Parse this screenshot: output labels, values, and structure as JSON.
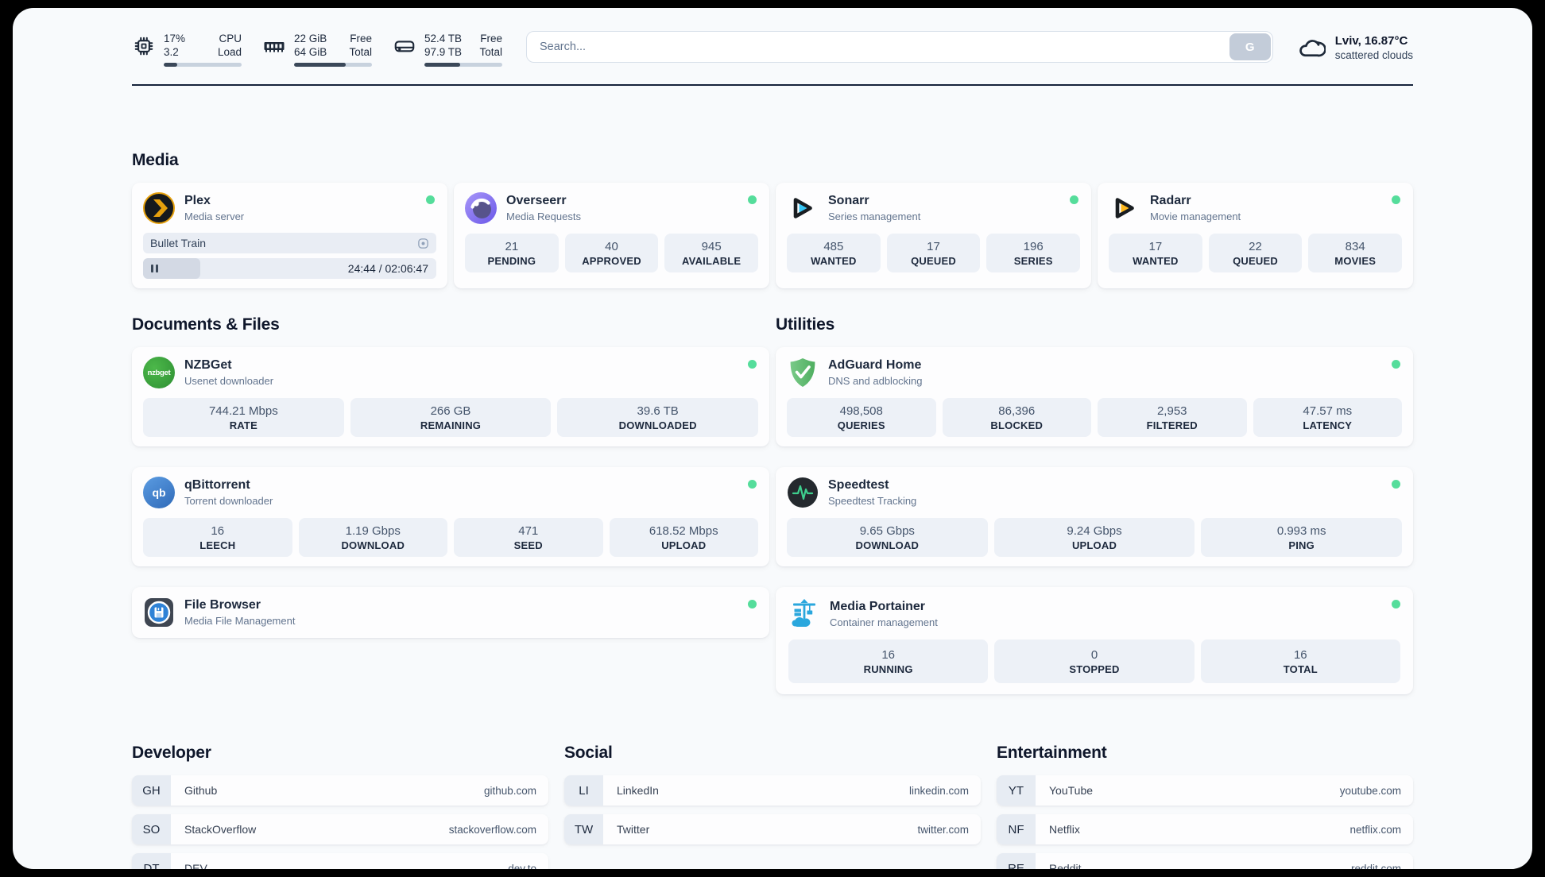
{
  "theme": {
    "status_green": "#55dd9b"
  },
  "header": {
    "stats": [
      {
        "icon": "cpu-chip-icon",
        "line1_value": "17%",
        "line1_label": "CPU",
        "line2_value": "3.2",
        "line2_label": "Load",
        "progress_pct": 17
      },
      {
        "icon": "memory-icon",
        "line1_value": "22 GiB",
        "line1_label": "Free",
        "line2_value": "64 GiB",
        "line2_label": "Total",
        "progress_pct": 66
      },
      {
        "icon": "disk-icon",
        "line1_value": "52.4 TB",
        "line1_label": "Free",
        "line2_value": "97.9 TB",
        "line2_label": "Total",
        "progress_pct": 46
      }
    ],
    "search": {
      "placeholder": "Search...",
      "button_label": "G"
    },
    "weather": {
      "icon": "cloud-icon",
      "headline": "Lviv, 16.87°C",
      "condition": "scattered clouds"
    }
  },
  "sections": {
    "media": {
      "heading": "Media",
      "plex": {
        "title": "Plex",
        "subtitle": "Media server",
        "now_playing": "Bullet Train",
        "time_display": "24:44 / 02:06:47",
        "progress_pct": 19.5
      },
      "overseerr": {
        "title": "Overseerr",
        "subtitle": "Media Requests",
        "stats": [
          {
            "value": "21",
            "label": "PENDING"
          },
          {
            "value": "40",
            "label": "APPROVED"
          },
          {
            "value": "945",
            "label": "AVAILABLE"
          }
        ]
      },
      "sonarr": {
        "title": "Sonarr",
        "subtitle": "Series management",
        "stats": [
          {
            "value": "485",
            "label": "WANTED"
          },
          {
            "value": "17",
            "label": "QUEUED"
          },
          {
            "value": "196",
            "label": "SERIES"
          }
        ]
      },
      "radarr": {
        "title": "Radarr",
        "subtitle": "Movie management",
        "stats": [
          {
            "value": "17",
            "label": "WANTED"
          },
          {
            "value": "22",
            "label": "QUEUED"
          },
          {
            "value": "834",
            "label": "MOVIES"
          }
        ]
      }
    },
    "documents": {
      "heading": "Documents & Files",
      "nzbget": {
        "title": "NZBGet",
        "subtitle": "Usenet downloader",
        "stats": [
          {
            "value": "744.21 Mbps",
            "label": "RATE"
          },
          {
            "value": "266 GB",
            "label": "REMAINING"
          },
          {
            "value": "39.6 TB",
            "label": "DOWNLOADED"
          }
        ]
      },
      "qbittorrent": {
        "title": "qBittorrent",
        "subtitle": "Torrent downloader",
        "stats": [
          {
            "value": "16",
            "label": "LEECH"
          },
          {
            "value": "1.19 Gbps",
            "label": "DOWNLOAD"
          },
          {
            "value": "471",
            "label": "SEED"
          },
          {
            "value": "618.52 Mbps",
            "label": "UPLOAD"
          }
        ]
      },
      "filebrowser": {
        "title": "File Browser",
        "subtitle": "Media File Management"
      }
    },
    "utilities": {
      "heading": "Utilities",
      "adguard": {
        "title": "AdGuard Home",
        "subtitle": "DNS and adblocking",
        "stats": [
          {
            "value": "498,508",
            "label": "QUERIES"
          },
          {
            "value": "86,396",
            "label": "BLOCKED"
          },
          {
            "value": "2,953",
            "label": "FILTERED"
          },
          {
            "value": "47.57 ms",
            "label": "LATENCY"
          }
        ]
      },
      "speedtest": {
        "title": "Speedtest",
        "subtitle": "Speedtest Tracking",
        "stats": [
          {
            "value": "9.65 Gbps",
            "label": "DOWNLOAD"
          },
          {
            "value": "9.24 Gbps",
            "label": "UPLOAD"
          },
          {
            "value": "0.993 ms",
            "label": "PING"
          }
        ]
      },
      "portainer": {
        "title": "Media Portainer",
        "subtitle": "Container management",
        "stats": [
          {
            "value": "16",
            "label": "RUNNING"
          },
          {
            "value": "0",
            "label": "STOPPED"
          },
          {
            "value": "16",
            "label": "TOTAL"
          }
        ]
      }
    },
    "bookmarks": [
      {
        "heading": "Developer",
        "links": [
          {
            "abbr": "GH",
            "name": "Github",
            "url": "github.com"
          },
          {
            "abbr": "SO",
            "name": "StackOverflow",
            "url": "stackoverflow.com"
          },
          {
            "abbr": "DT",
            "name": "DEV",
            "url": "dev.to"
          }
        ]
      },
      {
        "heading": "Social",
        "links": [
          {
            "abbr": "LI",
            "name": "LinkedIn",
            "url": "linkedin.com"
          },
          {
            "abbr": "TW",
            "name": "Twitter",
            "url": "twitter.com"
          }
        ]
      },
      {
        "heading": "Entertainment",
        "links": [
          {
            "abbr": "YT",
            "name": "YouTube",
            "url": "youtube.com"
          },
          {
            "abbr": "NF",
            "name": "Netflix",
            "url": "netflix.com"
          },
          {
            "abbr": "RE",
            "name": "Reddit",
            "url": "reddit.com"
          }
        ]
      }
    ]
  }
}
